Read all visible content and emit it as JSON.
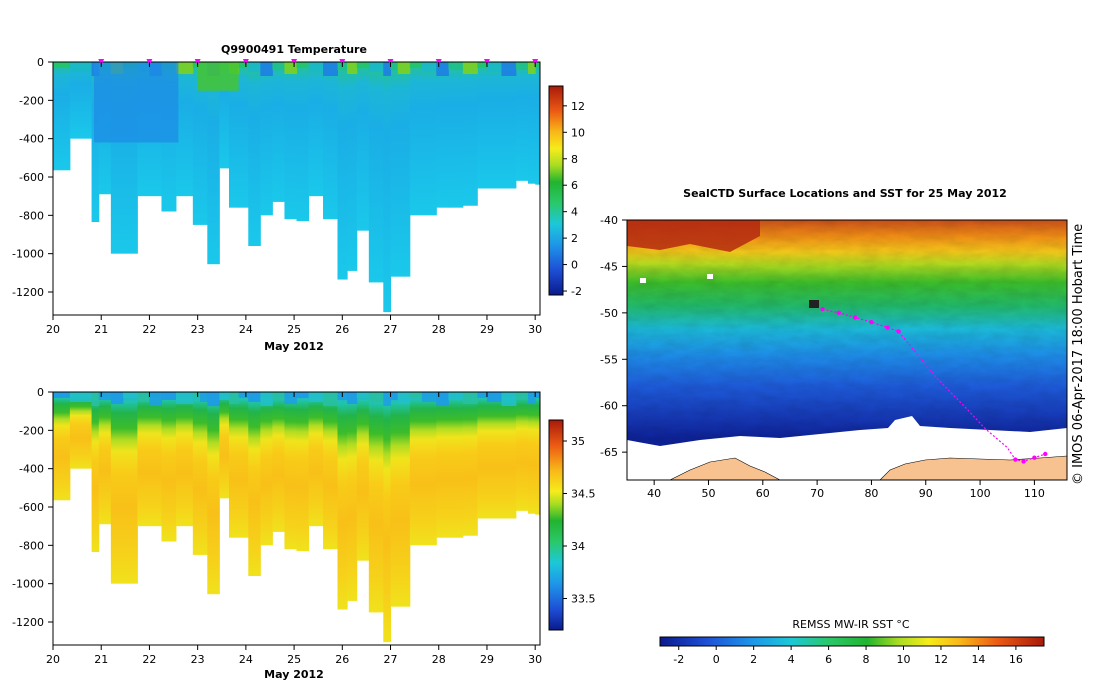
{
  "chart_data": [
    {
      "type": "heatmap",
      "title": "Q9900491  Temperature",
      "xlabel": "May 2012",
      "ylabel": "",
      "x_ticks": [
        "20",
        "21",
        "22",
        "23",
        "24",
        "25",
        "26",
        "27",
        "28",
        "29",
        "30"
      ],
      "y_ticks": [
        "0",
        "-200",
        "-400",
        "-600",
        "-800",
        "-1000",
        "-1200"
      ],
      "xlim": [
        20,
        30.1
      ],
      "ylim": [
        -1320,
        0
      ],
      "colorbar": {
        "ticks": [
          "-2",
          "0",
          "2",
          "4",
          "6",
          "8",
          "10",
          "12"
        ],
        "range": [
          -2.3,
          13.5
        ]
      },
      "profile_times": [
        20.0,
        20.35,
        20.8,
        20.95,
        21.2,
        21.45,
        21.75,
        22.0,
        22.25,
        22.55,
        22.9,
        23.05,
        23.2,
        23.45,
        23.65,
        23.85,
        24.05,
        24.3,
        24.55,
        24.8,
        25.05,
        25.3,
        25.6,
        25.9,
        26.1,
        26.3,
        26.55,
        26.85,
        27.0,
        27.15,
        27.4,
        27.65,
        27.95,
        28.2,
        28.5,
        28.8,
        29.0,
        29.3,
        29.6,
        29.85,
        30.0
      ],
      "profile_depths": [
        -565,
        -400,
        -835,
        -690,
        -1000,
        -1000,
        -700,
        -700,
        -780,
        -700,
        -850,
        -850,
        -1055,
        -555,
        -760,
        -760,
        -960,
        -800,
        -730,
        -820,
        -830,
        -700,
        -820,
        -1135,
        -1090,
        -880,
        -1150,
        -1305,
        -1120,
        -1120,
        -800,
        -800,
        -760,
        -760,
        -750,
        -660,
        -660,
        -660,
        -620,
        -635,
        -640
      ],
      "surface_markers": [
        21,
        22,
        23,
        24,
        25,
        26,
        27,
        28,
        29,
        30
      ]
    },
    {
      "type": "heatmap",
      "title": "",
      "xlabel": "May 2012",
      "x_ticks": [
        "20",
        "21",
        "22",
        "23",
        "24",
        "25",
        "26",
        "27",
        "28",
        "29",
        "30"
      ],
      "y_ticks": [
        "0",
        "-200",
        "-400",
        "-600",
        "-800",
        "-1000",
        "-1200"
      ],
      "xlim": [
        20,
        30.1
      ],
      "ylim": [
        -1320,
        0
      ],
      "colorbar": {
        "ticks": [
          "33.5",
          "34",
          "34.5",
          "35"
        ],
        "range": [
          33.2,
          35.2
        ]
      }
    },
    {
      "type": "heatmap",
      "title": "SealCTD Surface Locations and SST for 25 May 2012",
      "xlabel": "",
      "x_ticks": [
        "40",
        "50",
        "60",
        "70",
        "80",
        "90",
        "100",
        "110"
      ],
      "y_ticks": [
        "-40",
        "-45",
        "-50",
        "-55",
        "-60",
        "-65"
      ],
      "xlim": [
        35,
        116
      ],
      "ylim": [
        -68,
        -40
      ],
      "colorbar": {
        "label": "REMSS MW-IR SST °C",
        "ticks": [
          "-2",
          "0",
          "2",
          "4",
          "6",
          "8",
          "10",
          "12",
          "14",
          "16"
        ],
        "range": [
          -3,
          17.5
        ]
      },
      "track": [
        [
          71,
          -49.6
        ],
        [
          74,
          -50
        ],
        [
          77,
          -50.5
        ],
        [
          80,
          -51
        ],
        [
          83,
          -51.6
        ],
        [
          85,
          -52
        ],
        [
          92,
          -57
        ],
        [
          97,
          -60
        ],
        [
          101,
          -62.5
        ],
        [
          105,
          -64.5
        ],
        [
          106.5,
          -65.8
        ],
        [
          108,
          -66
        ],
        [
          110,
          -65.6
        ],
        [
          112,
          -65.2
        ]
      ],
      "side_label": "© IMOS 06-Apr-2017 18:00 Hobart Time"
    }
  ]
}
